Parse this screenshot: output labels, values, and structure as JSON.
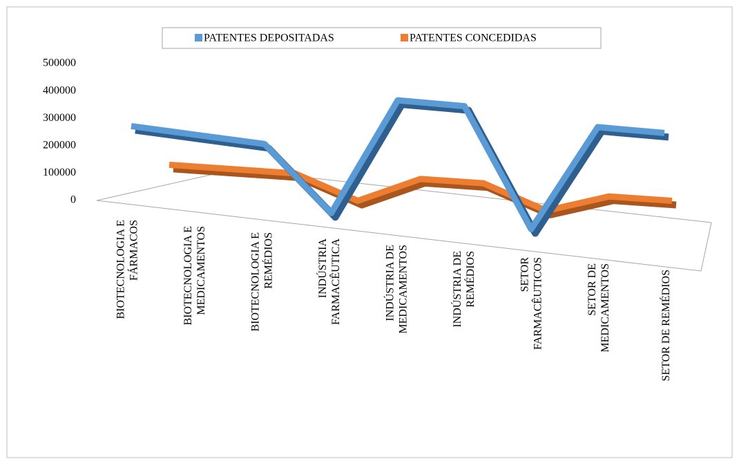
{
  "chart_data": {
    "type": "line3d",
    "categories": [
      "BIOTECNOLOGIA E\nFÁRMACOS",
      "BIOTECNOLOGIA E\nMEDICAMENTOS",
      "BIOTECNOLOGIA E\nREMÉDIOS",
      "INDÚSTRIA\nFARMACÊUTICA",
      "INDÚSTRIA DE\nMEDICAMENTOS",
      "INDÚSTRIA DE\nREMÉDIOS",
      "SETOR\nFARMACÊUTICOS",
      "SETOR DE\nMEDICAMENTOS",
      "SETOR DE REMÉDIOS"
    ],
    "series": [
      {
        "name": "PATENTES DEPOSITADAS",
        "color": "#5b9bd5",
        "values": [
          230000,
          220000,
          210000,
          5000,
          390000,
          390000,
          10000,
          360000,
          360000
        ]
      },
      {
        "name": "PATENTES CONCEDIDAS",
        "color": "#ed7d31",
        "values": [
          100000,
          95000,
          90000,
          10000,
          90000,
          85000,
          5000,
          60000,
          55000
        ]
      }
    ],
    "ylim": [
      0,
      500000
    ],
    "yticks": [
      0,
      100000,
      200000,
      300000,
      400000,
      500000
    ],
    "legend": "top"
  }
}
